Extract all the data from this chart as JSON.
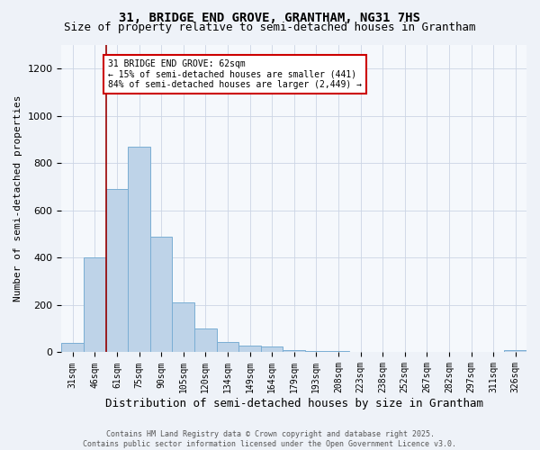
{
  "title1": "31, BRIDGE END GROVE, GRANTHAM, NG31 7HS",
  "title2": "Size of property relative to semi-detached houses in Grantham",
  "xlabel": "Distribution of semi-detached houses by size in Grantham",
  "ylabel": "Number of semi-detached properties",
  "categories": [
    "31sqm",
    "46sqm",
    "61sqm",
    "75sqm",
    "90sqm",
    "105sqm",
    "120sqm",
    "134sqm",
    "149sqm",
    "164sqm",
    "179sqm",
    "193sqm",
    "208sqm",
    "223sqm",
    "238sqm",
    "252sqm",
    "267sqm",
    "282sqm",
    "297sqm",
    "311sqm",
    "326sqm"
  ],
  "values": [
    40,
    400,
    690,
    870,
    490,
    210,
    100,
    45,
    30,
    25,
    10,
    7,
    4,
    3,
    2,
    1,
    1,
    1,
    0,
    0,
    8
  ],
  "bar_color": "#bed3e8",
  "bar_edge_color": "#7aaed4",
  "annotation_title": "31 BRIDGE END GROVE: 62sqm",
  "annotation_line1": "← 15% of semi-detached houses are smaller (441)",
  "annotation_line2": "84% of semi-detached houses are larger (2,449) →",
  "annotation_box_facecolor": "#ffffff",
  "annotation_box_edgecolor": "#cc0000",
  "vline_color": "#990000",
  "ylim": [
    0,
    1300
  ],
  "yticks": [
    0,
    200,
    400,
    600,
    800,
    1000,
    1200
  ],
  "footnote1": "Contains HM Land Registry data © Crown copyright and database right 2025.",
  "footnote2": "Contains public sector information licensed under the Open Government Licence v3.0.",
  "bg_color": "#eef2f8",
  "plot_bg_color": "#f5f8fc",
  "grid_color": "#ccd5e5",
  "title1_fontsize": 10,
  "title2_fontsize": 9,
  "xlabel_fontsize": 9,
  "ylabel_fontsize": 8,
  "tick_fontsize": 7,
  "annot_fontsize": 7,
  "footnote_fontsize": 6
}
